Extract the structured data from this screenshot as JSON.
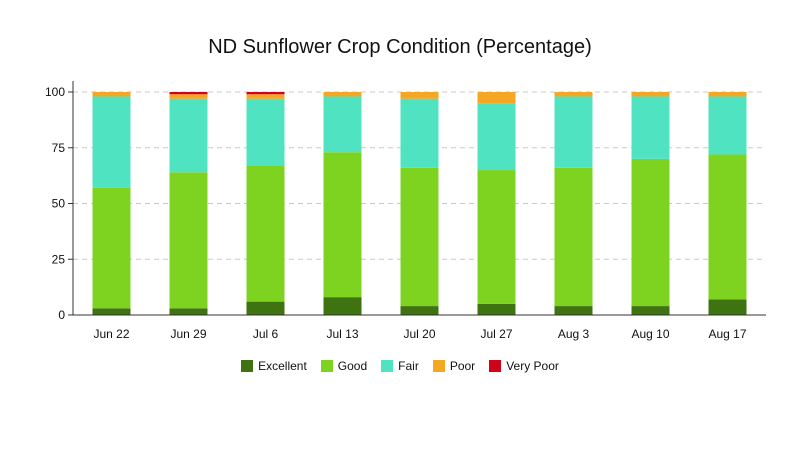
{
  "chart_data": {
    "type": "bar",
    "stacked": true,
    "title": "ND Sunflower Crop Condition (Percentage)",
    "xlabel": "",
    "ylabel": "",
    "ylim": [
      0,
      100
    ],
    "yticks": [
      0,
      25,
      50,
      75,
      100
    ],
    "grid": true,
    "legend_position": "bottom",
    "categories": [
      "Jun 22",
      "Jun 29",
      "Jul 6",
      "Jul 13",
      "Jul 20",
      "Jul 27",
      "Aug 3",
      "Aug 10",
      "Aug 17"
    ],
    "series": [
      {
        "name": "Excellent",
        "color": "#3f7210",
        "values": [
          3,
          3,
          6,
          8,
          4,
          5,
          4,
          4,
          7
        ]
      },
      {
        "name": "Good",
        "color": "#7ed321",
        "values": [
          54,
          61,
          61,
          65,
          62,
          60,
          62,
          66,
          65
        ]
      },
      {
        "name": "Fair",
        "color": "#50e3c2",
        "values": [
          41,
          33,
          30,
          25,
          31,
          30,
          32,
          28,
          26
        ]
      },
      {
        "name": "Poor",
        "color": "#f5a623",
        "values": [
          2,
          2,
          2,
          2,
          3,
          5,
          2,
          2,
          2
        ]
      },
      {
        "name": "Very Poor",
        "color": "#d0021b",
        "values": [
          0,
          1,
          1,
          0,
          0,
          0,
          0,
          0,
          0
        ]
      }
    ]
  }
}
